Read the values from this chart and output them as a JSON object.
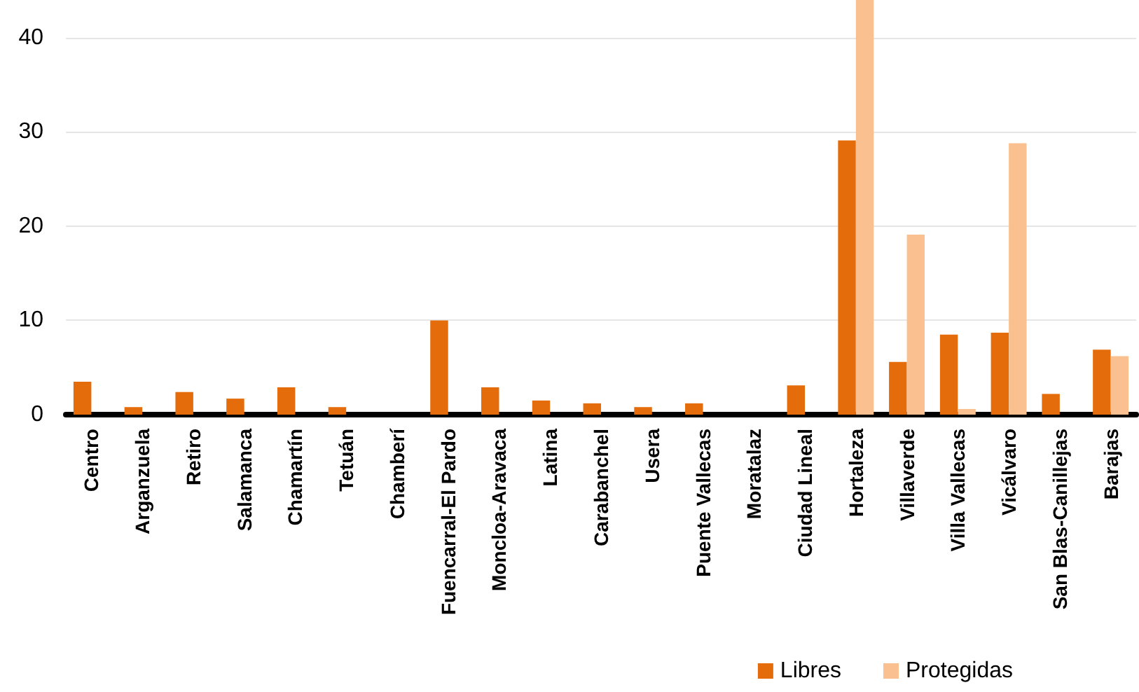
{
  "chart_data": {
    "type": "bar",
    "categories": [
      "Centro",
      "Arganzuela",
      "Retiro",
      "Salamanca",
      "Chamartín",
      "Tetuán",
      "Chamberí",
      "Fuencarral-El Pardo",
      "Moncloa-Aravaca",
      "Latina",
      "Carabanchel",
      "Usera",
      "Puente Vallecas",
      "Moratalaz",
      "Ciudad Lineal",
      "Hortaleza",
      "Villaverde",
      "Villa Vallecas",
      "Vicálvaro",
      "San Blas-Canillejas",
      "Barajas"
    ],
    "series": [
      {
        "name": "Libres",
        "color": "#e46c0a",
        "values": [
          3.5,
          0.8,
          2.4,
          1.7,
          2.9,
          0.8,
          0,
          10.0,
          2.9,
          1.5,
          1.2,
          0.8,
          1.2,
          0,
          3.1,
          29.1,
          5.6,
          8.5,
          8.7,
          2.2,
          6.9
        ]
      },
      {
        "name": "Protegidas",
        "color": "#fac090",
        "values": [
          0,
          0,
          0,
          0,
          0,
          0,
          0,
          0,
          0,
          0,
          0,
          0,
          0,
          0,
          0,
          44,
          19.1,
          0.6,
          28.8,
          0,
          6.2
        ]
      }
    ],
    "ylim": [
      0,
      44
    ],
    "yticks": [
      0,
      10,
      20,
      30,
      40
    ],
    "grid": "y",
    "legend": "bottom right"
  }
}
